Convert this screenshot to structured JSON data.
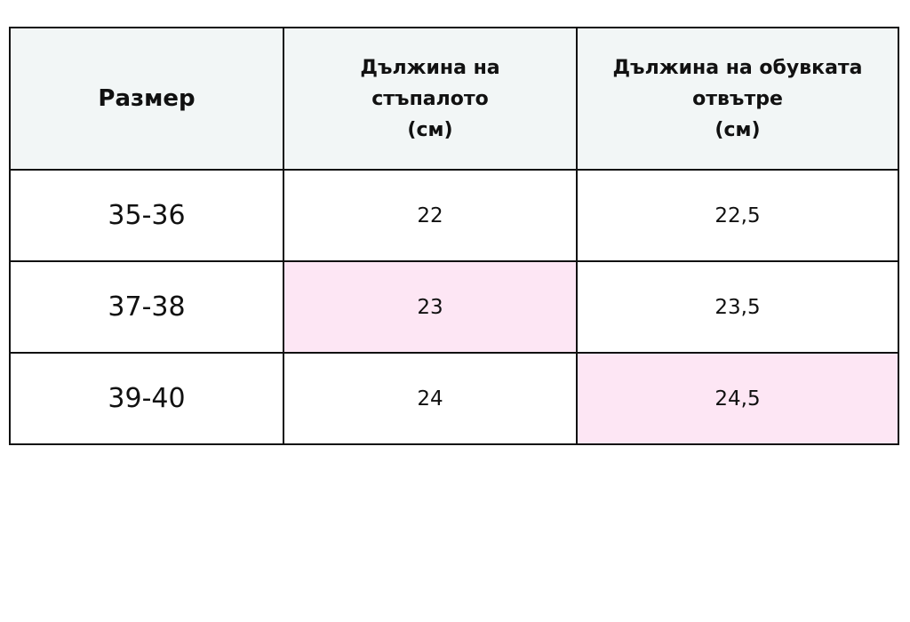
{
  "table": {
    "headers": [
      [
        "Размер"
      ],
      [
        "Дължина на",
        "стъпалото",
        "(см)"
      ],
      [
        "Дължина на обувката",
        "отвътре",
        "(см)"
      ]
    ],
    "rows": [
      [
        "35-36",
        "22",
        "22,5"
      ],
      [
        "37-38",
        "23",
        "23,5"
      ],
      [
        "39-40",
        "24",
        "24,5"
      ]
    ]
  }
}
